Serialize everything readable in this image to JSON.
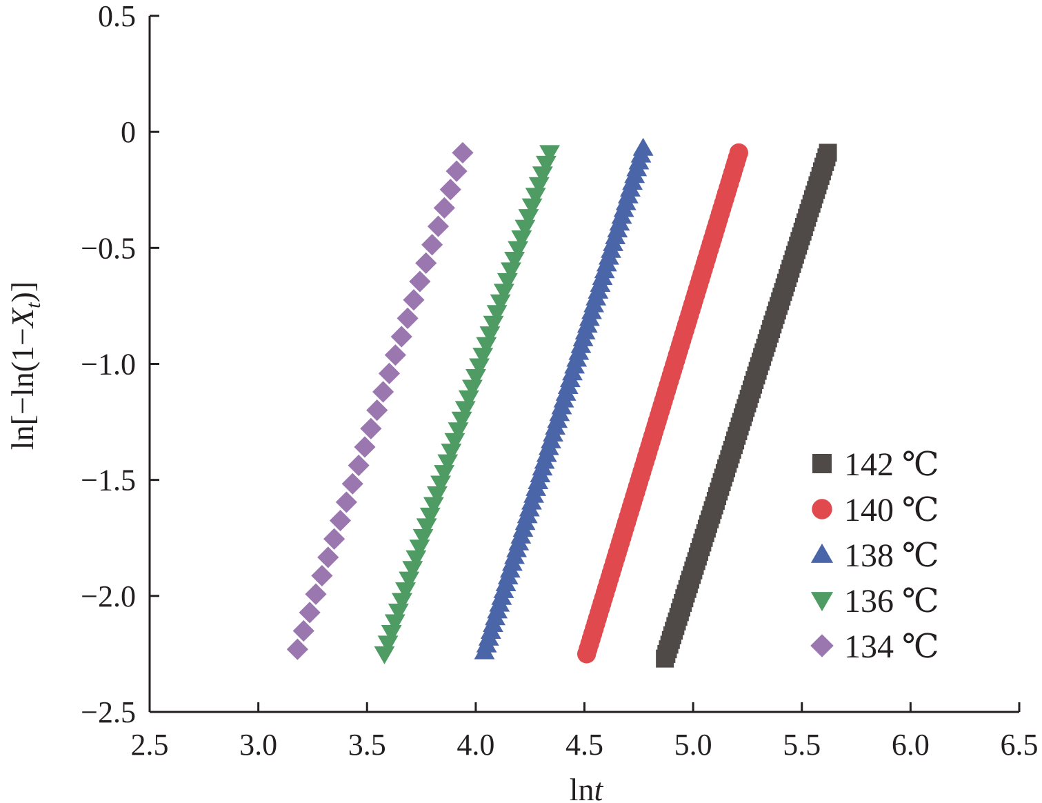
{
  "chart_data": {
    "type": "scatter",
    "xlabel": {
      "main": "ln",
      "italic": "t"
    },
    "ylabel": {
      "prefix": "ln[−ln(1−",
      "var": "X",
      "sub": "t",
      "suffix": ")]"
    },
    "xlim": [
      2.5,
      6.5
    ],
    "ylim": [
      -2.5,
      0.5
    ],
    "xticks": [
      "2.5",
      "3.0",
      "3.5",
      "4.0",
      "4.5",
      "5.0",
      "5.5",
      "6.0",
      "6.5"
    ],
    "yticks": [
      "0.5",
      "0",
      "−0.5",
      "−1.0",
      "−1.5",
      "−2.0",
      "−2.5"
    ],
    "grid": false,
    "legend_position": "bottom-right",
    "series": [
      {
        "name": "142 ℃",
        "marker": "square",
        "color": "#4f4a48",
        "x_range": [
          4.87,
          5.62
        ],
        "y_range": [
          -2.27,
          -0.09
        ],
        "n_points": 110
      },
      {
        "name": "140 ℃",
        "marker": "circle",
        "color": "#e04a4f",
        "x_range": [
          4.51,
          5.21
        ],
        "y_range": [
          -2.25,
          -0.09
        ],
        "n_points": 100
      },
      {
        "name": "138 ℃",
        "marker": "triangle-up",
        "color": "#4b66a8",
        "x_range": [
          4.04,
          4.77
        ],
        "y_range": [
          -2.24,
          -0.07
        ],
        "n_points": 75
      },
      {
        "name": "136 ℃",
        "marker": "triangle-down",
        "color": "#4e9b63",
        "x_range": [
          3.58,
          4.34
        ],
        "y_range": [
          -2.25,
          -0.09
        ],
        "n_points": 48
      },
      {
        "name": "134 ℃",
        "marker": "diamond",
        "color": "#9b77b0",
        "x_range": [
          3.18,
          3.94
        ],
        "y_range": [
          -2.23,
          -0.09
        ],
        "n_points": 28
      }
    ]
  }
}
